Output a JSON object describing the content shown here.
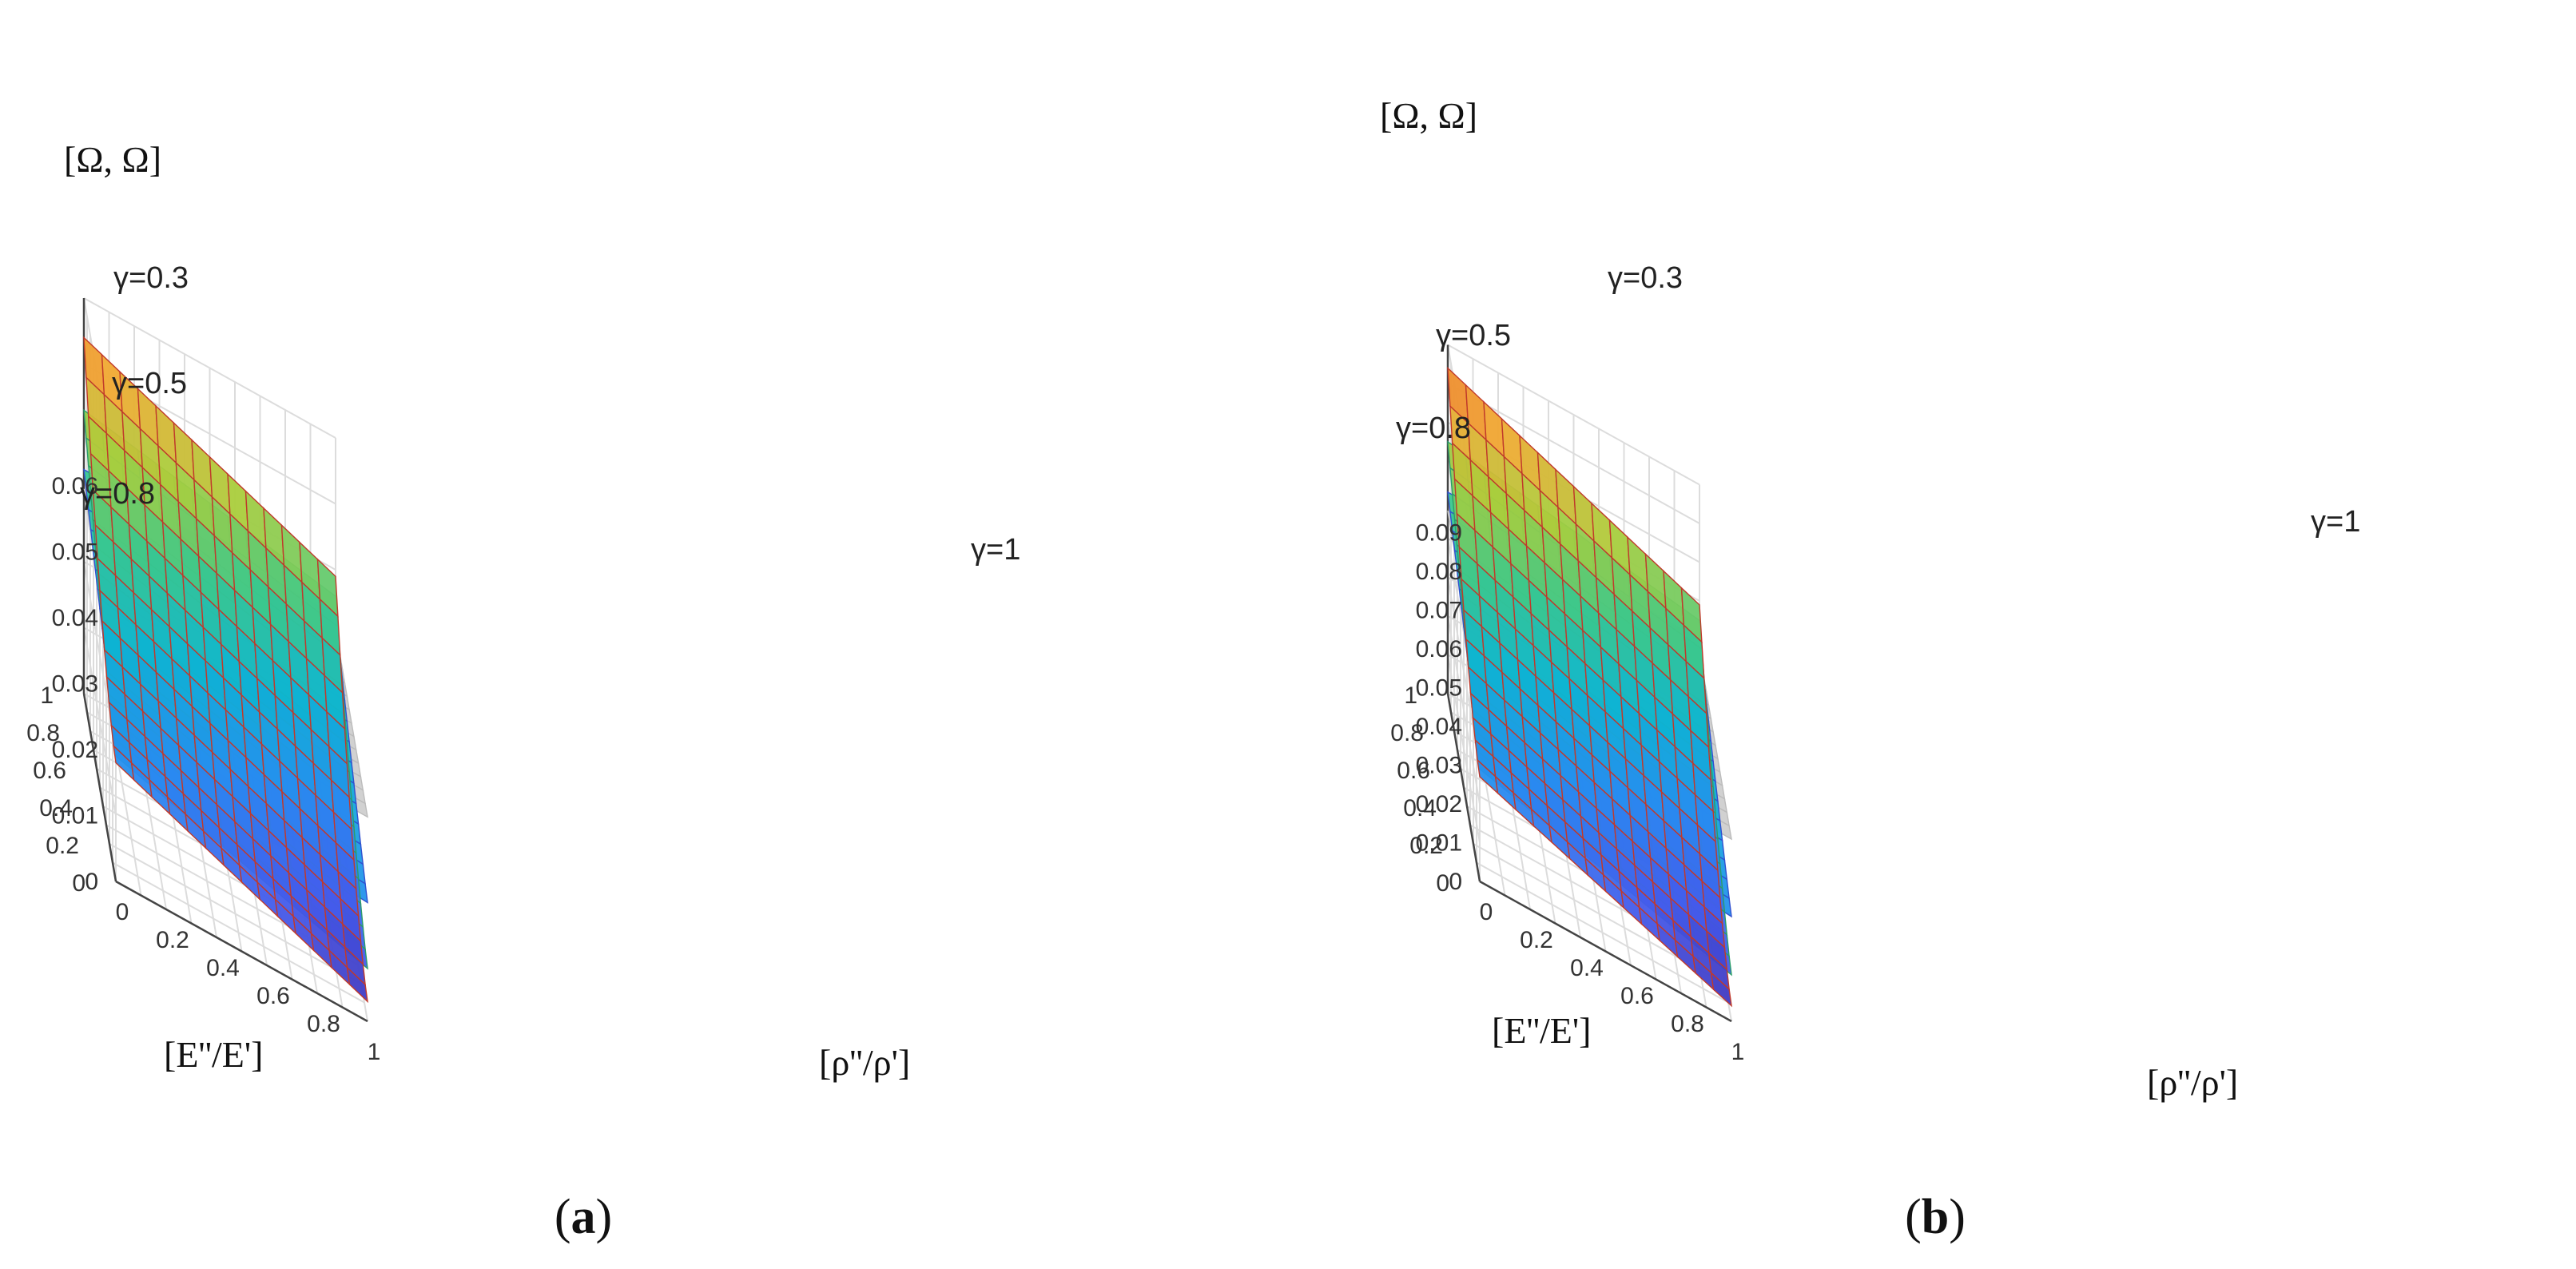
{
  "chart_data": [
    {
      "panel": "a",
      "type": "surface3d",
      "caption": "a",
      "zlabel": "[Ω, Ω]",
      "xlabel": "[E''/E']",
      "ylabel": "[ρ''/ρ']",
      "xlim": [
        0,
        1
      ],
      "ylim": [
        0,
        1
      ],
      "zlim": [
        0,
        0.06
      ],
      "x_ticks": [
        "0",
        "0.2",
        "0.4",
        "0.6",
        "0.8",
        "1"
      ],
      "y_ticks": [
        "0",
        "0.2",
        "0.4",
        "0.6",
        "0.8",
        "1"
      ],
      "z_ticks": [
        "0",
        "0.01",
        "0.02",
        "0.03",
        "0.04",
        "0.05",
        "0.06"
      ],
      "surfaces": [
        {
          "name": "γ=0.3",
          "corner_values": {
            "E1_rho0": 0.054,
            "E1_rho1": 0.039,
            "E0_rho0": 0.018,
            "E0_rho1": 0.003
          }
        },
        {
          "name": "γ=0.5",
          "corner_values": {
            "E1_rho0": 0.043,
            "E1_rho1": 0.036,
            "E0_rho0": 0.019,
            "E0_rho1": 0.008
          }
        },
        {
          "name": "γ=0.8",
          "corner_values": {
            "E1_rho0": 0.034,
            "E1_rho1": 0.033,
            "E0_rho0": 0.021,
            "E0_rho1": 0.018
          }
        },
        {
          "name": "γ=1",
          "corner_values": {
            "E1_rho0": 0.031,
            "E1_rho1": 0.031,
            "E0_rho0": 0.031,
            "E0_rho1": 0.031
          }
        }
      ]
    },
    {
      "panel": "b",
      "type": "surface3d",
      "caption": "b",
      "zlabel": "[Ω, Ω]",
      "xlabel": "[E''/E']",
      "ylabel": "[ρ''/ρ']",
      "xlim": [
        0,
        1
      ],
      "ylim": [
        0,
        1
      ],
      "zlim": [
        0,
        0.09
      ],
      "x_ticks": [
        "0",
        "0.2",
        "0.4",
        "0.6",
        "0.8",
        "1"
      ],
      "y_ticks": [
        "0",
        "0.2",
        "0.4",
        "0.6",
        "0.8",
        "1"
      ],
      "z_ticks": [
        "0",
        "0.01",
        "0.02",
        "0.03",
        "0.04",
        "0.05",
        "0.06",
        "0.07",
        "0.08",
        "0.09"
      ],
      "surfaces": [
        {
          "name": "γ=0.3",
          "corner_values": {
            "E1_rho0": 0.084,
            "E1_rho1": 0.059,
            "E0_rho0": 0.027,
            "E0_rho1": 0.004
          }
        },
        {
          "name": "γ=0.5",
          "corner_values": {
            "E1_rho0": 0.065,
            "E1_rho1": 0.055,
            "E0_rho0": 0.029,
            "E0_rho1": 0.012
          }
        },
        {
          "name": "γ=0.8",
          "corner_values": {
            "E1_rho0": 0.052,
            "E1_rho1": 0.05,
            "E0_rho0": 0.032,
            "E0_rho1": 0.027
          }
        },
        {
          "name": "γ=1",
          "corner_values": {
            "E1_rho0": 0.047,
            "E1_rho1": 0.047,
            "E0_rho0": 0.047,
            "E0_rho1": 0.047
          }
        }
      ]
    }
  ]
}
